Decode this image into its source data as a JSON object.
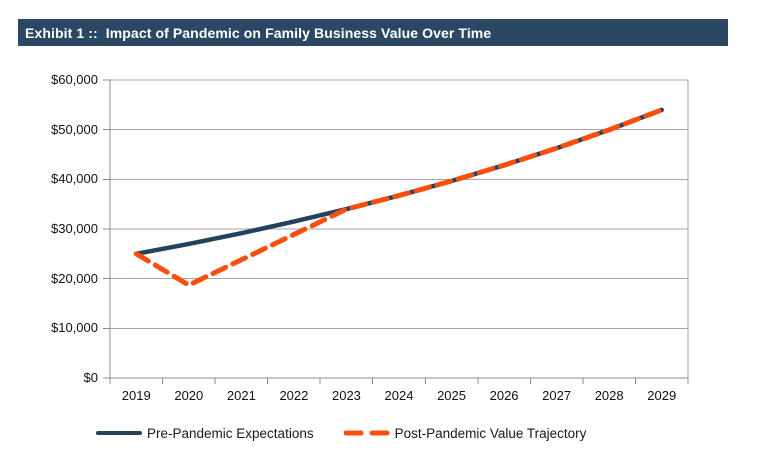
{
  "header": {
    "title": "Exhibit 1 ::  Impact of Pandemic on Family Business Value Over Time"
  },
  "chart_data": {
    "type": "line",
    "categories": [
      "2019",
      "2020",
      "2021",
      "2022",
      "2023",
      "2024",
      "2025",
      "2026",
      "2027",
      "2028",
      "2029"
    ],
    "series": [
      {
        "name": "Pre-Pandemic Expectations",
        "style": "solid",
        "color": "#24425C",
        "values": [
          25000,
          27000,
          29160,
          31490,
          34010,
          36730,
          39670,
          42850,
          46270,
          49980,
          53970
        ]
      },
      {
        "name": "Post-Pandemic Value Trajectory",
        "style": "dashed",
        "color": "#FA4E0D",
        "values": [
          25000,
          18700,
          23800,
          28900,
          34010,
          36730,
          39670,
          42850,
          46270,
          49980,
          53970
        ]
      }
    ],
    "title": "Exhibit 1 ::  Impact of Pandemic on Family Business Value Over Time",
    "xlabel": "",
    "ylabel": "",
    "ylim": [
      0,
      60000
    ],
    "yticks": [
      0,
      10000,
      20000,
      30000,
      40000,
      50000,
      60000
    ],
    "ytick_labels": [
      "$0",
      "$10,000",
      "$20,000",
      "$30,000",
      "$40,000",
      "$50,000",
      "$60,000"
    ],
    "grid": "horizontal",
    "legend_position": "bottom"
  },
  "colors": {
    "title_bg": "#2A4863",
    "title_text": "#ffffff",
    "gridline": "#A6A6A6",
    "axis": "#8C8C8C",
    "tick_text": "#111111"
  }
}
